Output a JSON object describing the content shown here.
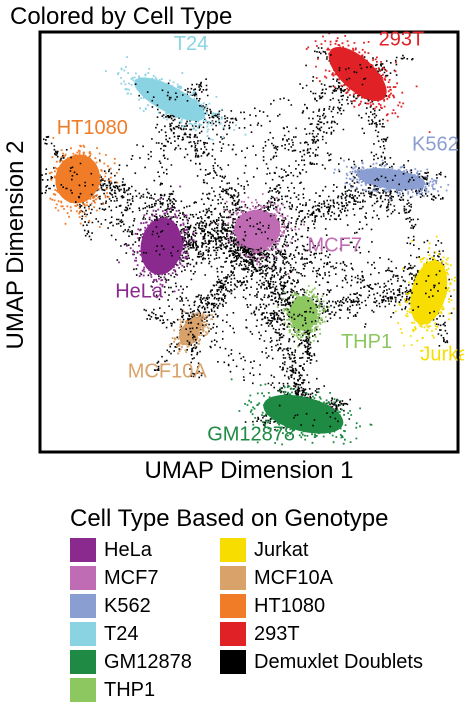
{
  "chart_data": {
    "type": "scatter",
    "title": "Colored by Cell Type",
    "xlabel": "UMAP Dimension 1",
    "ylabel": "UMAP Dimension 2",
    "xlim": [
      0,
      100
    ],
    "ylim": [
      0,
      100
    ],
    "grid": false,
    "legend_title": "Cell Type Based on Genotype",
    "legend_placement": "bottom",
    "series": [
      {
        "name": "HeLa",
        "color": "#8B2A8E",
        "center": [
          29,
          49
        ],
        "label_pos": [
          18,
          38
        ]
      },
      {
        "name": "MCF7",
        "color": "#C06CB4",
        "center": [
          52,
          53
        ],
        "label_pos": [
          64,
          49
        ]
      },
      {
        "name": "K562",
        "color": "#8A9ED2",
        "center": [
          84,
          65
        ],
        "label_pos": [
          89,
          73
        ]
      },
      {
        "name": "T24",
        "color": "#8AD3E3",
        "center": [
          31,
          84
        ],
        "label_pos": [
          32,
          97
        ]
      },
      {
        "name": "GM12878",
        "color": "#1F8A44",
        "center": [
          63,
          9
        ],
        "label_pos": [
          40,
          4
        ]
      },
      {
        "name": "THP1",
        "color": "#8CC760",
        "center": [
          63,
          33
        ],
        "label_pos": [
          72,
          26
        ]
      },
      {
        "name": "Jurkat",
        "color": "#F7DE00",
        "center": [
          93,
          38
        ],
        "label_pos": [
          91,
          23
        ]
      },
      {
        "name": "MCF10A",
        "color": "#D8A26A",
        "center": [
          36,
          29
        ],
        "label_pos": [
          21,
          19
        ]
      },
      {
        "name": "HT1080",
        "color": "#F07C28",
        "center": [
          9,
          65
        ],
        "label_pos": [
          4,
          77
        ]
      },
      {
        "name": "293T",
        "color": "#E02227",
        "center": [
          76,
          90
        ],
        "label_pos": [
          81,
          98
        ]
      },
      {
        "name": "Demuxlet Doublets",
        "color": "#000000",
        "center": [
          50,
          50
        ],
        "label_pos": null
      }
    ]
  }
}
